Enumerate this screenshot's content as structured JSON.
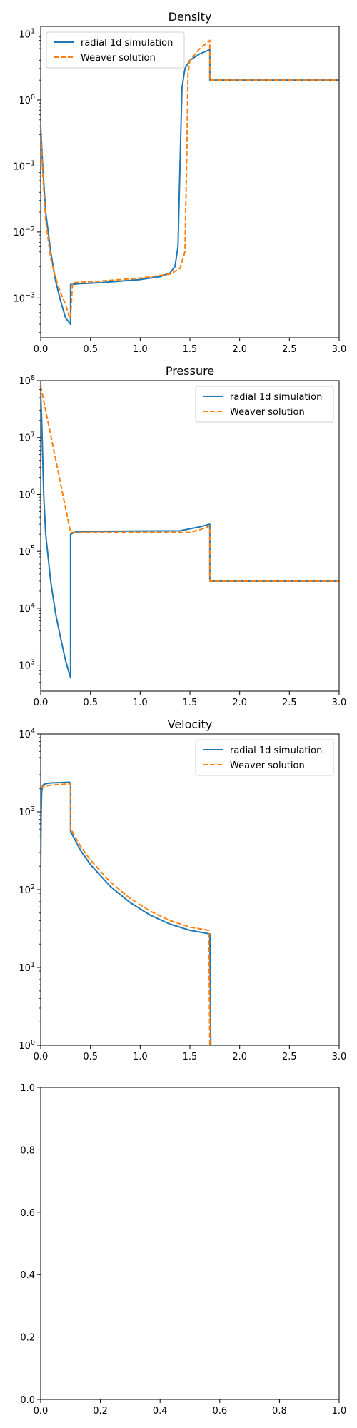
{
  "colors": {
    "simulation": "#1f77b4",
    "weaver": "#ff7f0e",
    "axes": "#000000"
  },
  "chart_data": [
    {
      "type": "line",
      "title": "Density",
      "xlabel": "",
      "ylabel": "",
      "yscale": "log",
      "xlim": [
        0,
        3.0
      ],
      "ylim": [
        0.00025,
        13
      ],
      "xticks": [
        "0.0",
        "0.5",
        "1.0",
        "1.5",
        "2.0",
        "2.5",
        "3.0"
      ],
      "yticks": [
        {
          "v": 0.001,
          "base": "10",
          "exp": "−3"
        },
        {
          "v": 0.01,
          "base": "10",
          "exp": "−2"
        },
        {
          "v": 0.1,
          "base": "10",
          "exp": "−1"
        },
        {
          "v": 1,
          "base": "10",
          "exp": "0"
        },
        {
          "v": 10,
          "base": "10",
          "exp": "1"
        }
      ],
      "legend": "top-left",
      "series": [
        {
          "name": "radial 1d simulation",
          "style": "solid",
          "x": [
            0.0,
            0.02,
            0.05,
            0.1,
            0.15,
            0.2,
            0.25,
            0.3,
            0.3,
            0.4,
            0.6,
            0.8,
            1.0,
            1.2,
            1.3,
            1.35,
            1.38,
            1.4,
            1.42,
            1.45,
            1.5,
            1.6,
            1.7,
            1.7,
            2.0,
            2.5,
            3.0
          ],
          "y": [
            0.4,
            0.1,
            0.02,
            0.005,
            0.0018,
            0.0009,
            0.0005,
            0.0004,
            0.0016,
            0.00165,
            0.0017,
            0.0018,
            0.0019,
            0.0021,
            0.0024,
            0.003,
            0.006,
            0.1,
            1.5,
            3.0,
            4.0,
            5.0,
            5.8,
            2.0,
            2.0,
            2.0,
            2.0
          ]
        },
        {
          "name": "Weaver solution",
          "style": "dashed",
          "x": [
            0.0,
            0.02,
            0.05,
            0.1,
            0.15,
            0.2,
            0.25,
            0.29,
            0.3,
            0.32,
            0.6,
            1.0,
            1.3,
            1.4,
            1.45,
            1.47,
            1.48,
            1.5,
            1.6,
            1.68,
            1.7,
            1.7,
            2.0,
            3.0
          ],
          "y": [
            0.35,
            0.08,
            0.015,
            0.004,
            0.002,
            0.0012,
            0.0008,
            0.0005,
            0.0005,
            0.0017,
            0.0018,
            0.002,
            0.0023,
            0.0028,
            0.005,
            0.2,
            2.5,
            4.0,
            6.0,
            7.5,
            8.0,
            2.0,
            2.0,
            2.0
          ]
        }
      ]
    },
    {
      "type": "line",
      "title": "Pressure",
      "xlabel": "",
      "ylabel": "",
      "yscale": "log",
      "xlim": [
        0,
        3.0
      ],
      "ylim": [
        350,
        100000000
      ],
      "xticks": [
        "0.0",
        "0.5",
        "1.0",
        "1.5",
        "2.0",
        "2.5",
        "3.0"
      ],
      "yticks": [
        {
          "v": 1000,
          "base": "10",
          "exp": "3"
        },
        {
          "v": 10000,
          "base": "10",
          "exp": "4"
        },
        {
          "v": 100000,
          "base": "10",
          "exp": "5"
        },
        {
          "v": 1000000,
          "base": "10",
          "exp": "6"
        },
        {
          "v": 10000000,
          "base": "10",
          "exp": "7"
        },
        {
          "v": 100000000,
          "base": "10",
          "exp": "8"
        }
      ],
      "legend": "top-right",
      "series": [
        {
          "name": "radial 1d simulation",
          "style": "solid",
          "x": [
            0.0,
            0.01,
            0.03,
            0.05,
            0.1,
            0.15,
            0.2,
            0.25,
            0.3,
            0.3,
            0.35,
            0.5,
            1.0,
            1.4,
            1.5,
            1.6,
            1.7,
            1.7,
            2.0,
            3.0
          ],
          "y": [
            60000000,
            20000000,
            1000000,
            200000,
            30000,
            8000,
            3000,
            1200,
            600,
            200000,
            220000,
            225000,
            228000,
            230000,
            250000,
            270000,
            300000,
            30000,
            30000,
            30000
          ]
        },
        {
          "name": "Weaver solution",
          "style": "dashed",
          "x": [
            0.0,
            0.3,
            0.35,
            0.5,
            1.0,
            1.5,
            1.6,
            1.7,
            1.7,
            2.0,
            3.0
          ],
          "y": [
            80000000,
            215000,
            215000,
            215000,
            215000,
            215000,
            240000,
            280000,
            30000,
            30000,
            30000
          ]
        }
      ]
    },
    {
      "type": "line",
      "title": "Velocity",
      "xlabel": "",
      "ylabel": "",
      "yscale": "log",
      "xlim": [
        0,
        3.0
      ],
      "ylim": [
        1,
        10000
      ],
      "xticks": [
        "0.0",
        "0.5",
        "1.0",
        "1.5",
        "2.0",
        "2.5",
        "3.0"
      ],
      "yticks": [
        {
          "v": 1,
          "base": "10",
          "exp": "0"
        },
        {
          "v": 10,
          "base": "10",
          "exp": "1"
        },
        {
          "v": 100,
          "base": "10",
          "exp": "2"
        },
        {
          "v": 1000,
          "base": "10",
          "exp": "3"
        },
        {
          "v": 10000,
          "base": "10",
          "exp": "4"
        }
      ],
      "legend": "top-right",
      "series": [
        {
          "name": "radial 1d simulation",
          "style": "solid",
          "x": [
            0.0,
            0.005,
            0.01,
            0.02,
            0.05,
            0.1,
            0.2,
            0.29,
            0.3,
            0.3,
            0.4,
            0.5,
            0.7,
            0.9,
            1.1,
            1.3,
            1.5,
            1.7,
            1.7,
            1.71
          ],
          "y": [
            200,
            1000,
            1800,
            2200,
            2300,
            2350,
            2380,
            2400,
            2300,
            560,
            320,
            210,
            110,
            68,
            47,
            36,
            30,
            27,
            27,
            1
          ]
        },
        {
          "name": "Weaver solution",
          "style": "dashed",
          "x": [
            0.0,
            0.01,
            0.05,
            0.1,
            0.2,
            0.3,
            0.3,
            0.32,
            0.4,
            0.5,
            0.7,
            0.9,
            1.1,
            1.3,
            1.5,
            1.69,
            1.69,
            1.7
          ],
          "y": [
            2000,
            2100,
            2150,
            2200,
            2250,
            2300,
            600,
            550,
            360,
            240,
            125,
            77,
            53,
            40,
            33,
            30,
            30,
            1
          ]
        }
      ]
    },
    {
      "type": "line",
      "title": "",
      "xlabel": "",
      "ylabel": "",
      "yscale": "linear",
      "xlim": [
        0,
        1
      ],
      "ylim": [
        0,
        1
      ],
      "xticks": [
        "0.0",
        "0.2",
        "0.4",
        "0.6",
        "0.8",
        "1.0"
      ],
      "yticks": [
        {
          "v": 0,
          "label": "0.0"
        },
        {
          "v": 0.2,
          "label": "0.2"
        },
        {
          "v": 0.4,
          "label": "0.4"
        },
        {
          "v": 0.6,
          "label": "0.6"
        },
        {
          "v": 0.8,
          "label": "0.8"
        },
        {
          "v": 1,
          "label": "1.0"
        }
      ],
      "legend": "none",
      "series": []
    }
  ]
}
